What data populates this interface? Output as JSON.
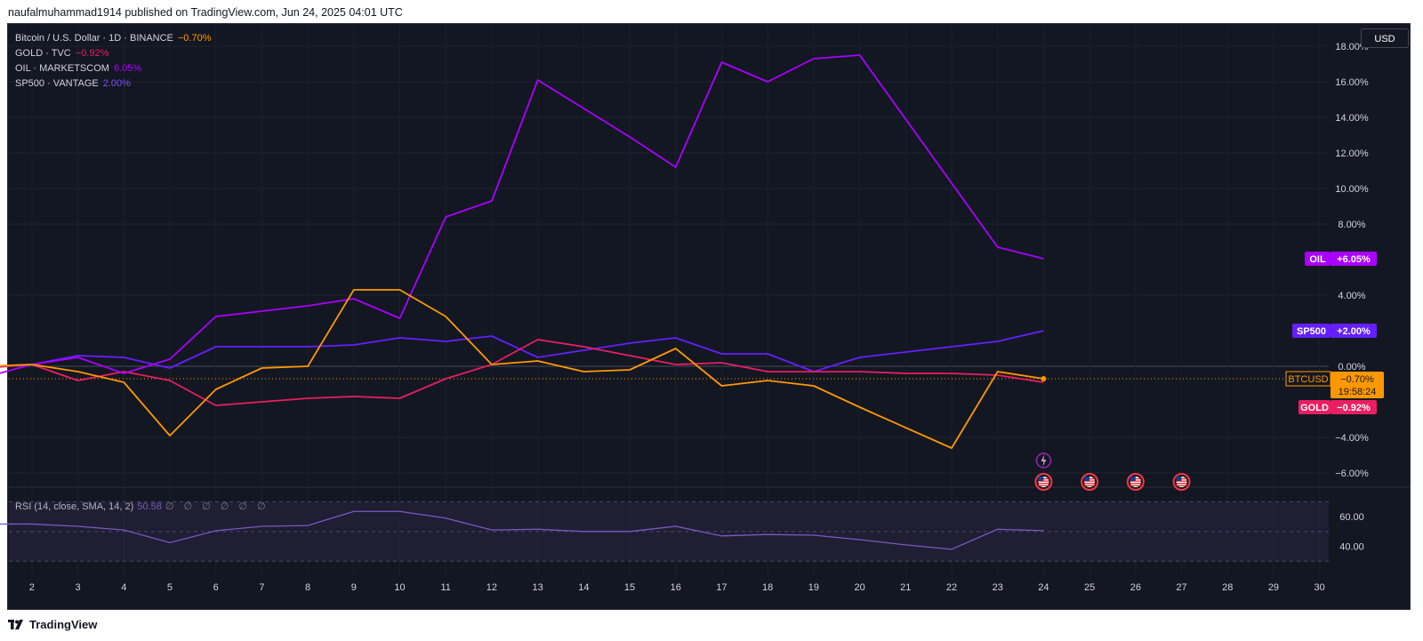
{
  "header": {
    "published_text": "naufalmuhammad1914 published on TradingView.com, Jun 24, 2025 04:01 UTC"
  },
  "footer": {
    "logo_text": "TradingView"
  },
  "toolbar": {
    "currency": "USD"
  },
  "legend": [
    {
      "label": "Bitcoin / U.S. Dollar · 1D · BINANCE",
      "change": "−0.70%",
      "color": "#ff9800"
    },
    {
      "label": "GOLD · TVC",
      "change": "−0.92%",
      "color": "#e91e63"
    },
    {
      "label": "OIL · MARKETSCOM",
      "change": "6.05%",
      "color": "#aa00ff"
    },
    {
      "label": "SP500 · VANTAGE",
      "change": "2.00%",
      "color": "#651fff"
    }
  ],
  "rsi": {
    "label": "RSI (14, close, SMA, 14, 2)",
    "value": "50.58",
    "extras": "∅ ∅ ∅ ∅ ∅ ∅"
  },
  "price_tags": [
    {
      "name": "OIL",
      "value": "+6.05%",
      "color": "#aa00ff",
      "y": 6.05
    },
    {
      "name": "SP500",
      "value": "+2.00%",
      "color": "#651fff",
      "y": 2.0
    },
    {
      "name": "BTCUSD",
      "value": "−0.70%",
      "extra": "19:58:24",
      "color": "#ff9800",
      "y": -0.7
    },
    {
      "name": "GOLD",
      "value": "−0.92%",
      "color": "#e91e63",
      "y": -2.3
    }
  ],
  "event_icons": {
    "lightning_day": 24,
    "flag_days": [
      24,
      25,
      26,
      27
    ]
  },
  "chart_data": {
    "type": "line",
    "x": [
      1,
      2,
      3,
      4,
      5,
      6,
      7,
      8,
      9,
      10,
      11,
      12,
      13,
      14,
      15,
      16,
      17,
      18,
      19,
      20,
      21,
      22,
      23,
      24
    ],
    "x_ticks": [
      2,
      3,
      4,
      5,
      6,
      7,
      8,
      9,
      10,
      11,
      12,
      13,
      14,
      15,
      16,
      17,
      18,
      19,
      20,
      21,
      22,
      23,
      24,
      25,
      26,
      27,
      28,
      29,
      30
    ],
    "xlim": [
      1.5,
      30.2
    ],
    "y_ticks": [
      18,
      16,
      14,
      12,
      10,
      8,
      4,
      0,
      -4,
      -6
    ],
    "y_tick_labels": [
      "18.00%",
      "16.00%",
      "14.00%",
      "12.00%",
      "10.00%",
      "8.00%",
      "4.00%",
      "0.00%",
      "−4.00%",
      "−6.00%"
    ],
    "ylim": [
      -6.6,
      19.2
    ],
    "grid": true,
    "series": [
      {
        "name": "BTCUSD",
        "color": "#ff9800",
        "x": [
          1,
          2,
          3,
          4,
          5,
          6,
          7,
          8,
          9,
          10,
          11,
          12,
          13,
          14,
          15,
          16,
          17,
          18,
          19,
          20,
          22,
          23,
          24
        ],
        "values": [
          0.0,
          0.1,
          -0.3,
          -0.9,
          -3.9,
          -1.3,
          -0.1,
          0.0,
          4.3,
          4.3,
          2.8,
          0.1,
          0.3,
          -0.3,
          -0.2,
          1.0,
          -1.1,
          -0.8,
          -1.1,
          -2.3,
          -4.6,
          -0.3,
          -0.7
        ]
      },
      {
        "name": "GOLD",
        "color": "#e91e63",
        "x": [
          1,
          2,
          3,
          4,
          5,
          6,
          7,
          8,
          9,
          10,
          11,
          12,
          13,
          14,
          15,
          16,
          17,
          18,
          19,
          20,
          21,
          22,
          23,
          24
        ],
        "values": [
          -0.1,
          0.1,
          -0.8,
          -0.3,
          -0.8,
          -2.2,
          -2.0,
          -1.8,
          -1.7,
          -1.8,
          -0.7,
          0.1,
          1.5,
          1.1,
          0.6,
          0.1,
          0.2,
          -0.3,
          -0.3,
          -0.3,
          -0.4,
          -0.4,
          -0.5,
          -0.9
        ]
      },
      {
        "name": "OIL",
        "color": "#aa00ff",
        "x": [
          1,
          2,
          3,
          4,
          5,
          6,
          7,
          8,
          9,
          10,
          11,
          12,
          13,
          14,
          15,
          16,
          17,
          18,
          19,
          20,
          21,
          22,
          23,
          24
        ],
        "values": [
          -0.6,
          0.1,
          0.5,
          -0.4,
          0.4,
          2.8,
          3.1,
          3.4,
          3.8,
          2.7,
          8.4,
          9.3,
          16.1,
          14.5,
          12.9,
          11.2,
          17.1,
          16.0,
          17.3,
          17.5,
          13.9,
          10.3,
          6.7,
          6.05
        ]
      },
      {
        "name": "SP500",
        "color": "#651fff",
        "x": [
          1,
          2,
          3,
          4,
          5,
          6,
          7,
          8,
          9,
          10,
          11,
          12,
          13,
          14,
          15,
          16,
          17,
          18,
          19,
          20,
          21,
          22,
          23,
          24
        ],
        "values": [
          0.0,
          0.1,
          0.6,
          0.5,
          -0.1,
          1.1,
          1.1,
          1.1,
          1.2,
          1.6,
          1.4,
          1.7,
          0.5,
          0.9,
          1.3,
          1.6,
          0.7,
          0.7,
          -0.3,
          0.5,
          0.8,
          1.1,
          1.4,
          2.0
        ]
      }
    ],
    "rsi": {
      "x": [
        1,
        2,
        3,
        4,
        5,
        6,
        7,
        8,
        9,
        10,
        11,
        12,
        13,
        14,
        15,
        16,
        17,
        18,
        19,
        20,
        21,
        22,
        23,
        24
      ],
      "values": [
        55,
        55,
        53.5,
        51,
        42.5,
        50.5,
        53.5,
        54,
        63.5,
        63.5,
        59,
        51,
        51.5,
        50,
        50,
        53.5,
        47,
        48,
        47.5,
        44.5,
        41,
        38,
        51.5,
        50.58
      ],
      "y_ticks": [
        60,
        40
      ],
      "y_tick_labels": [
        "60.00",
        "40.00"
      ],
      "band": [
        30,
        70
      ],
      "color": "#7e57c2"
    }
  }
}
